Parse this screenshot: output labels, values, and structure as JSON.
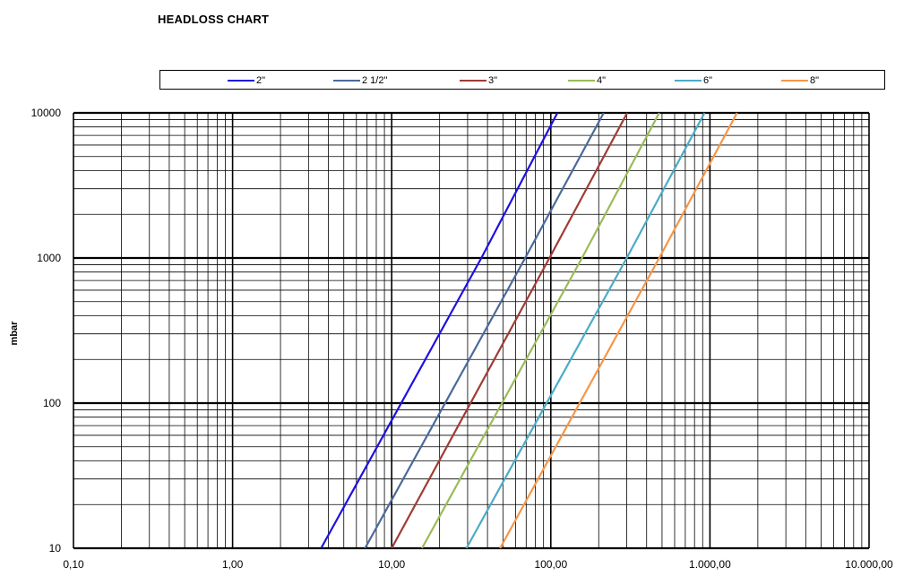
{
  "title": "HEADLOSS CHART",
  "chart_data": {
    "type": "line",
    "xscale": "log",
    "yscale": "log",
    "xlim": [
      0.1,
      10000
    ],
    "ylim": [
      10,
      10000
    ],
    "xlabel": "",
    "ylabel": "mbar",
    "grid": true,
    "legend_position": "top",
    "x_tick_labels": [
      "0,10",
      "1,00",
      "10,00",
      "100,00",
      "1.000,00",
      "10.000,00"
    ],
    "y_tick_labels": [
      "10",
      "100",
      "1000",
      "10000"
    ],
    "series": [
      {
        "name": "2\"",
        "color": "#1f10e0",
        "points": [
          [
            3.6,
            10
          ],
          [
            36.6,
            1000
          ],
          [
            110,
            10000
          ]
        ]
      },
      {
        "name": "2 1/2\"",
        "color": "#4a6a9a",
        "points": [
          [
            6.8,
            10
          ],
          [
            69,
            1000
          ],
          [
            215,
            10000
          ]
        ]
      },
      {
        "name": "3\"",
        "color": "#a03b34",
        "points": [
          [
            10,
            10
          ],
          [
            98,
            1000
          ],
          [
            302,
            10000
          ]
        ]
      },
      {
        "name": "4\"",
        "color": "#9bbb59",
        "points": [
          [
            15.5,
            10
          ],
          [
            157,
            1000
          ],
          [
            480,
            10000
          ]
        ]
      },
      {
        "name": "6\"",
        "color": "#4bacc6",
        "points": [
          [
            29.5,
            10
          ],
          [
            300,
            1000
          ],
          [
            925,
            10000
          ]
        ]
      },
      {
        "name": "8\"",
        "color": "#f79646",
        "points": [
          [
            48,
            10
          ],
          [
            480,
            1000
          ],
          [
            1480,
            10000
          ]
        ]
      }
    ]
  }
}
